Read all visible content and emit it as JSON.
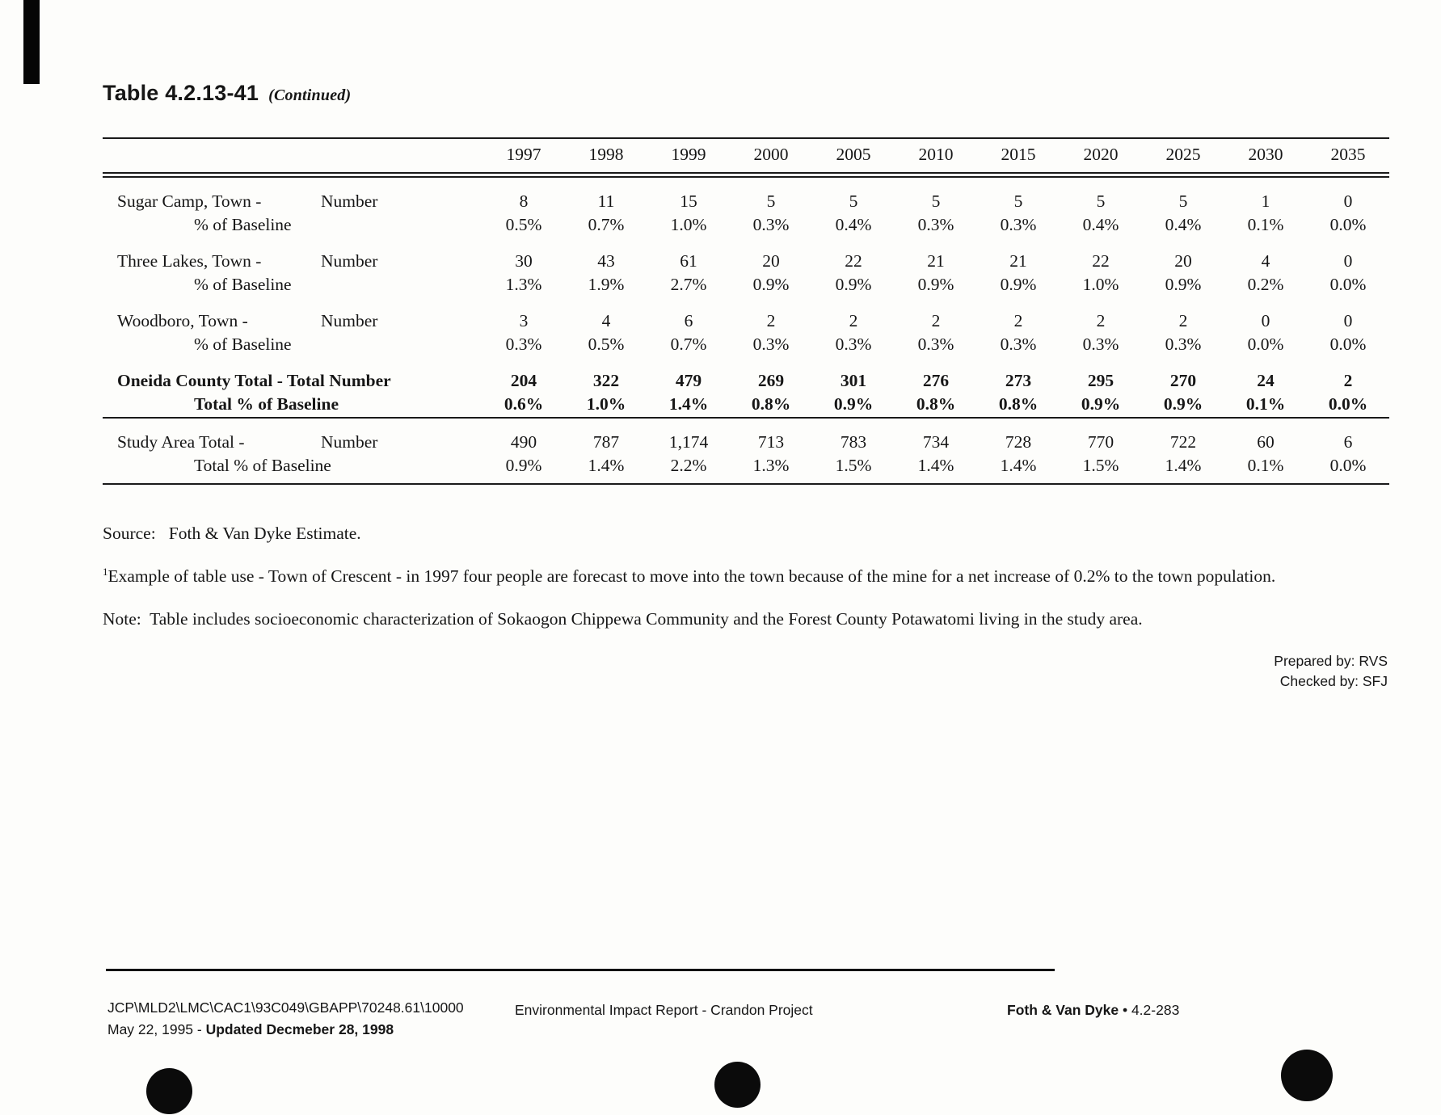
{
  "header": {
    "title": "Table 4.2.13-41",
    "continued": "(Continued)"
  },
  "table": {
    "years": [
      "1997",
      "1998",
      "1999",
      "2000",
      "2005",
      "2010",
      "2015",
      "2020",
      "2025",
      "2030",
      "2035"
    ],
    "groups": [
      {
        "name": "Sugar Camp, Town -",
        "unit": "Number",
        "pct_label": "% of Baseline",
        "bold": false,
        "rule_above": false,
        "numbers": [
          "8",
          "11",
          "15",
          "5",
          "5",
          "5",
          "5",
          "5",
          "5",
          "1",
          "0"
        ],
        "percents": [
          "0.5%",
          "0.7%",
          "1.0%",
          "0.3%",
          "0.4%",
          "0.3%",
          "0.3%",
          "0.4%",
          "0.4%",
          "0.1%",
          "0.0%"
        ]
      },
      {
        "name": "Three Lakes, Town -",
        "unit": "Number",
        "pct_label": "% of Baseline",
        "bold": false,
        "rule_above": false,
        "numbers": [
          "30",
          "43",
          "61",
          "20",
          "22",
          "21",
          "21",
          "22",
          "20",
          "4",
          "0"
        ],
        "percents": [
          "1.3%",
          "1.9%",
          "2.7%",
          "0.9%",
          "0.9%",
          "0.9%",
          "0.9%",
          "1.0%",
          "0.9%",
          "0.2%",
          "0.0%"
        ]
      },
      {
        "name": "Woodboro, Town -",
        "unit": "Number",
        "pct_label": "% of Baseline",
        "bold": false,
        "rule_above": false,
        "numbers": [
          "3",
          "4",
          "6",
          "2",
          "2",
          "2",
          "2",
          "2",
          "2",
          "0",
          "0"
        ],
        "percents": [
          "0.3%",
          "0.5%",
          "0.7%",
          "0.3%",
          "0.3%",
          "0.3%",
          "0.3%",
          "0.3%",
          "0.3%",
          "0.0%",
          "0.0%"
        ]
      },
      {
        "name": "Oneida County Total - Total Number",
        "unit": "",
        "pct_label": "Total % of Baseline",
        "bold": true,
        "rule_above": false,
        "numbers": [
          "204",
          "322",
          "479",
          "269",
          "301",
          "276",
          "273",
          "295",
          "270",
          "24",
          "2"
        ],
        "percents": [
          "0.6%",
          "1.0%",
          "1.4%",
          "0.8%",
          "0.9%",
          "0.8%",
          "0.8%",
          "0.9%",
          "0.9%",
          "0.1%",
          "0.0%"
        ]
      },
      {
        "name": "Study Area Total -",
        "unit": "Number",
        "pct_label": "Total % of Baseline",
        "bold": false,
        "rule_above": true,
        "numbers": [
          "490",
          "787",
          "1,174",
          "713",
          "783",
          "734",
          "728",
          "770",
          "722",
          "60",
          "6"
        ],
        "percents": [
          "0.9%",
          "1.4%",
          "2.2%",
          "1.3%",
          "1.5%",
          "1.4%",
          "1.4%",
          "1.5%",
          "1.4%",
          "0.1%",
          "0.0%"
        ]
      }
    ]
  },
  "notes": {
    "source": "Source:   Foth & Van Dyke Estimate.",
    "example_sup": "1",
    "example_text": "Example of table use - Town of Crescent - in 1997 four people are forecast to move into the town because of the mine for a net increase of 0.2% to the town population.",
    "note": "Note:  Table includes socioeconomic characterization of Sokaogon Chippewa Community and the Forest County Potawatomi living in the study area.",
    "prepared_by": "Prepared by: RVS",
    "checked_by": "Checked by: SFJ"
  },
  "footer": {
    "path": "JCP\\MLD2\\LMC\\CAC1\\93C049\\GBAPP\\70248.61\\10000",
    "date_plain": "May 22, 1995 - ",
    "date_bold": "Updated Decmeber 28, 1998",
    "center": "Environmental Impact Report - Crandon Project",
    "company": "Foth & Van Dyke",
    "page": " • 4.2-283"
  },
  "colors": {
    "ink": "#161616",
    "paper": "#fdfdfb"
  }
}
